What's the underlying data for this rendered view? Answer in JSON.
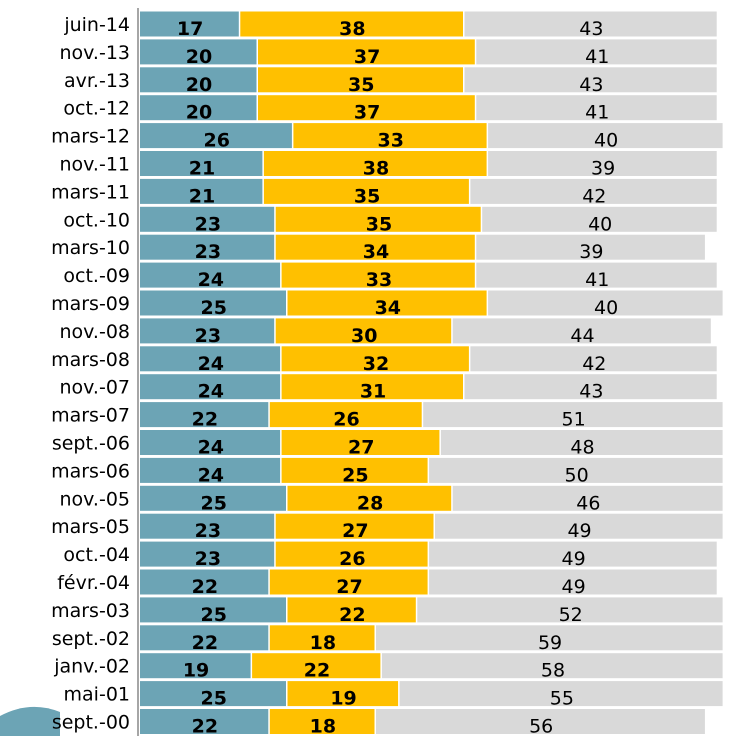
{
  "chart_data": {
    "type": "stacked-bar-horizontal",
    "categories": [
      "juin-14",
      "nov.-13",
      "avr.-13",
      "oct.-12",
      "mars-12",
      "nov.-11",
      "mars-11",
      "oct.-10",
      "mars-10",
      "oct.-09",
      "mars-09",
      "nov.-08",
      "mars-08",
      "nov.-07",
      "mars-07",
      "sept.-06",
      "mars-06",
      "nov.-05",
      "mars-05",
      "oct.-04",
      "févr.-04",
      "mars-03",
      "sept.-02",
      "janv.-02",
      "mai-01",
      "sept.-00"
    ],
    "series": [
      {
        "color": "#6ca4b5",
        "values": [
          17,
          20,
          20,
          20,
          26,
          21,
          21,
          23,
          23,
          24,
          25,
          23,
          24,
          24,
          22,
          24,
          24,
          25,
          23,
          23,
          22,
          25,
          22,
          19,
          25,
          22
        ]
      },
      {
        "color": "#ffc000",
        "values": [
          38,
          37,
          35,
          37,
          33,
          38,
          35,
          35,
          34,
          33,
          34,
          30,
          32,
          31,
          26,
          27,
          25,
          28,
          27,
          26,
          27,
          22,
          18,
          22,
          19,
          18
        ]
      },
      {
        "color": "#d9d9d9",
        "values": [
          43,
          41,
          43,
          41,
          40,
          39,
          42,
          40,
          39,
          41,
          40,
          44,
          42,
          43,
          51,
          48,
          50,
          46,
          49,
          49,
          49,
          52,
          59,
          58,
          55,
          56
        ]
      }
    ],
    "xlim": [
      0,
      100
    ]
  }
}
